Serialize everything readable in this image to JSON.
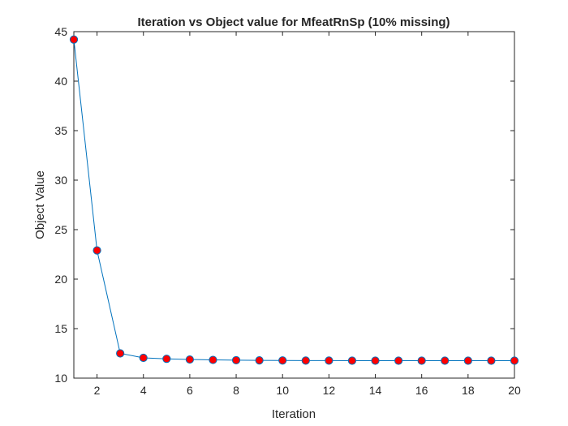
{
  "chart_data": {
    "type": "line",
    "title": "Iteration vs Object value for MfeatRnSp (10% missing)",
    "xlabel": "Iteration",
    "ylabel": "Object Value",
    "xlim": [
      1,
      20
    ],
    "ylim": [
      10,
      45
    ],
    "xticks": [
      2,
      4,
      6,
      8,
      10,
      12,
      14,
      16,
      18,
      20
    ],
    "yticks": [
      10,
      15,
      20,
      25,
      30,
      35,
      40,
      45
    ],
    "grid": false,
    "legend": "none",
    "series": [
      {
        "x": [
          1,
          2,
          3,
          4,
          5,
          6,
          7,
          8,
          9,
          10,
          11,
          12,
          13,
          14,
          15,
          16,
          17,
          18,
          19,
          20
        ],
        "y": [
          44.2,
          22.9,
          12.5,
          12.05,
          11.95,
          11.88,
          11.84,
          11.81,
          11.79,
          11.78,
          11.77,
          11.77,
          11.76,
          11.76,
          11.76,
          11.76,
          11.76,
          11.76,
          11.76,
          11.76
        ],
        "line_color": "#0072BD",
        "marker_fill": "#FF0000",
        "marker_edge": "#0072BD"
      }
    ]
  }
}
